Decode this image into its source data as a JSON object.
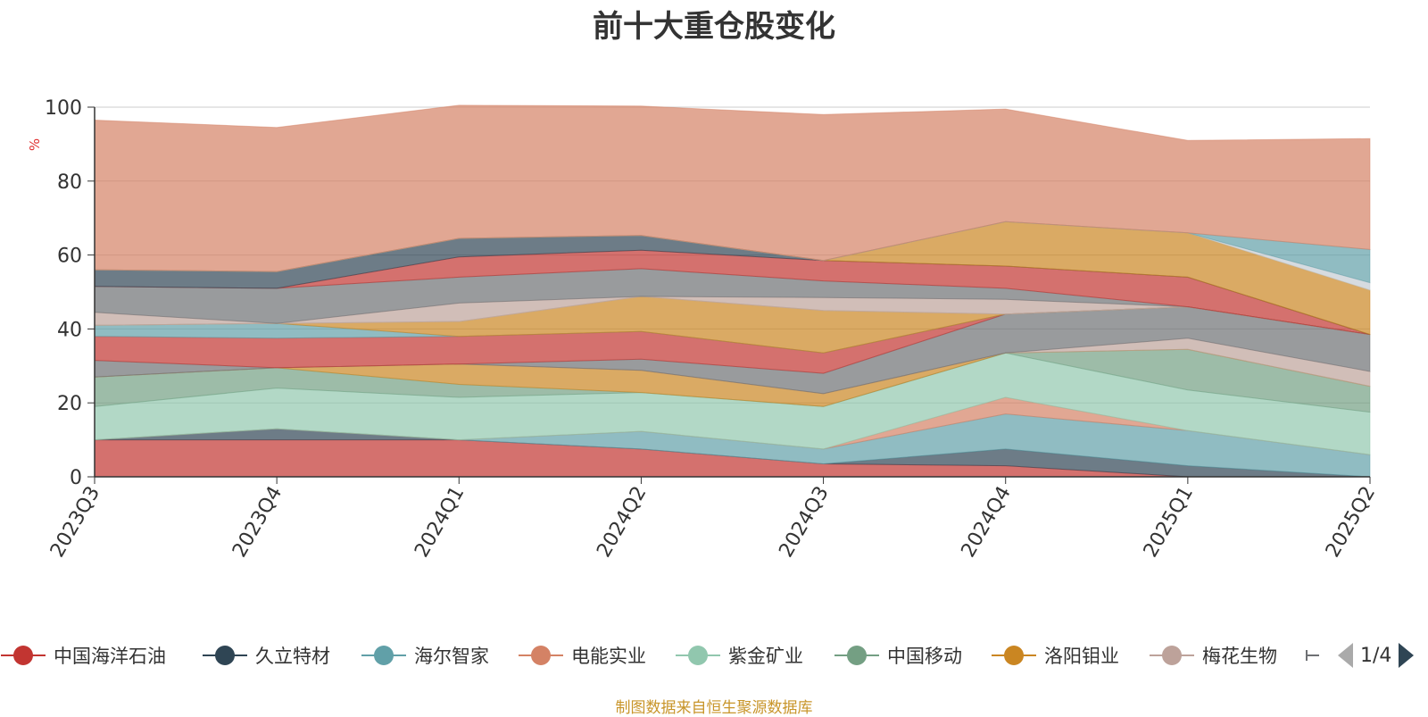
{
  "chart_data": {
    "type": "area",
    "title": "前十大重仓股变化",
    "ylabel": "%",
    "ylim": [
      0,
      100
    ],
    "yticks": [
      0,
      20,
      40,
      60,
      80,
      100
    ],
    "grid": true,
    "stacked": true,
    "categories": [
      "2023Q3",
      "2023Q4",
      "2024Q1",
      "2024Q2",
      "2024Q3",
      "2024Q4",
      "2025Q1",
      "2025Q2"
    ],
    "series": [
      {
        "name": "中国海洋石油",
        "color": "#c23531",
        "values": [
          10,
          10,
          10,
          7.5,
          3.5,
          3,
          0,
          0
        ]
      },
      {
        "name": "久立特材",
        "color": "#2f4554",
        "values": [
          0,
          3,
          0,
          0,
          0,
          4.5,
          3,
          0
        ]
      },
      {
        "name": "海尔智家",
        "color": "#61a0a8",
        "values": [
          0,
          0,
          0,
          4.8,
          4,
          9.5,
          9.5,
          6
        ]
      },
      {
        "name": "电能实业",
        "color": "#d48265",
        "values": [
          0,
          0,
          0,
          0,
          0,
          4.5,
          0,
          0
        ]
      },
      {
        "name": "紫金矿业",
        "color": "#91c7ae",
        "values": [
          9,
          11,
          11.5,
          10.5,
          11.5,
          12,
          11,
          11.5
        ]
      },
      {
        "name": "中国移动",
        "color": "#749f83",
        "values": [
          8,
          5.5,
          3.5,
          0,
          0,
          0,
          11,
          7
        ]
      },
      {
        "name": "洛阳钼业",
        "color": "#ca8622",
        "values": [
          0,
          0,
          5.5,
          6,
          3.5,
          0,
          0,
          0
        ]
      },
      {
        "name": "梅花生物",
        "color": "#bda29a",
        "values": [
          0,
          0,
          0,
          0,
          0,
          0,
          3,
          4
        ]
      },
      {
        "name": "",
        "color": "#6e7074",
        "values": [
          4.5,
          0,
          0,
          3,
          5.5,
          10.5,
          8.5,
          10
        ]
      },
      {
        "name": "",
        "color": "#c23531",
        "values": [
          6.5,
          8,
          7.5,
          7.5,
          5.5,
          0,
          0,
          0
        ]
      },
      {
        "name": "",
        "color": "#61a0a8",
        "values": [
          3,
          4,
          0,
          0,
          0,
          0,
          0,
          0
        ]
      },
      {
        "name": "",
        "color": "#ca8622",
        "values": [
          0,
          0,
          4,
          9.5,
          11.5,
          0,
          0,
          0
        ]
      },
      {
        "name": "",
        "color": "#c4ccd3",
        "values": [
          0,
          0,
          0,
          0,
          0,
          0,
          0,
          0
        ]
      },
      {
        "name": "",
        "color": "#bda29a",
        "values": [
          3.5,
          0,
          5,
          0,
          3.5,
          4,
          0,
          0
        ]
      },
      {
        "name": "",
        "color": "#6e7074",
        "values": [
          7,
          9.5,
          7,
          7.5,
          4.5,
          3,
          0,
          0
        ]
      },
      {
        "name": "",
        "color": "#c23531",
        "values": [
          0,
          0,
          5.5,
          5,
          5.5,
          6,
          8,
          0
        ]
      },
      {
        "name": "",
        "color": "#2f4554",
        "values": [
          4.5,
          4.5,
          5,
          4,
          0,
          0,
          0,
          0
        ]
      },
      {
        "name": "",
        "color": "#ca8622",
        "values": [
          0,
          0,
          0,
          0,
          0,
          12,
          12,
          12
        ]
      },
      {
        "name": "",
        "color": "#c4ccd3",
        "values": [
          0,
          0,
          0,
          0,
          0,
          0,
          0,
          2
        ]
      },
      {
        "name": "",
        "color": "#61a0a8",
        "values": [
          0,
          0,
          0,
          0,
          0,
          0,
          0,
          9
        ]
      },
      {
        "name": "",
        "color": "#d48265",
        "values": [
          40.5,
          39,
          36,
          35,
          39.5,
          30.5,
          25,
          30
        ]
      }
    ]
  },
  "legend": {
    "items": [
      {
        "label": "中国海洋石油",
        "color": "#c23531"
      },
      {
        "label": "久立特材",
        "color": "#2f4554"
      },
      {
        "label": "海尔智家",
        "color": "#61a0a8"
      },
      {
        "label": "电能实业",
        "color": "#d48265"
      },
      {
        "label": "紫金矿业",
        "color": "#91c7ae"
      },
      {
        "label": "中国移动",
        "color": "#749f83"
      },
      {
        "label": "洛阳钼业",
        "color": "#ca8622"
      },
      {
        "label": "梅花生物",
        "color": "#bda29a"
      }
    ],
    "pager_text": "1/4"
  },
  "source_note": "制图数据来自恒生聚源数据库"
}
